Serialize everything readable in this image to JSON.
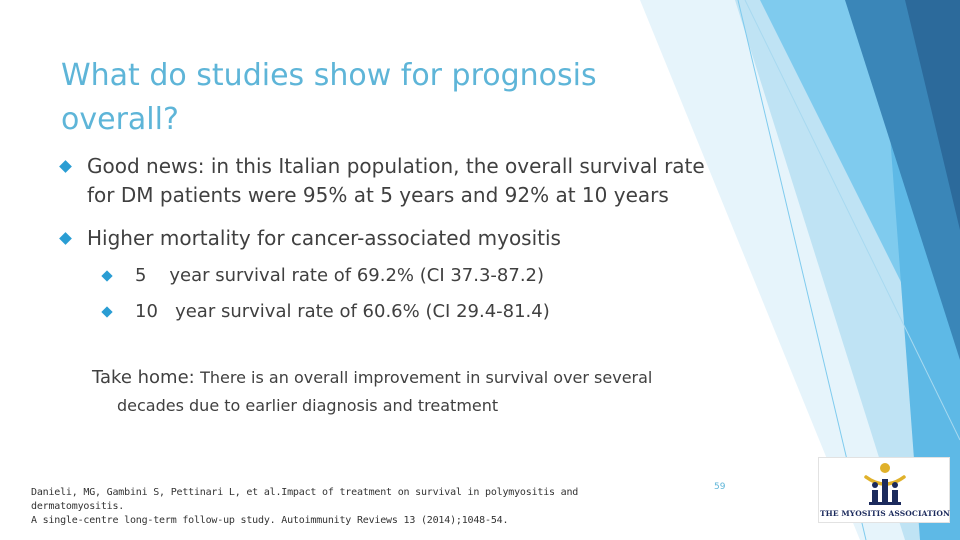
{
  "slide": {
    "title": "What do studies show for prognosis overall?",
    "bullets": [
      {
        "text": "Good news: in this Italian population, the overall survival rate for DM patients were 95% at 5 years and 92% at 10 years",
        "sub": []
      },
      {
        "text": "Higher mortality for cancer-associated myositis",
        "sub": [
          {
            "text": "5    year survival rate of 69.2% (CI 37.3-87.2)"
          },
          {
            "text": "10   year survival rate of 60.6% (CI 29.4-81.4)"
          }
        ]
      }
    ],
    "take_home": {
      "label": "Take home:",
      "line1": "There is an overall improvement in survival over several",
      "line2": "decades due to earlier diagnosis and treatment"
    },
    "reference": {
      "line1": "Danieli, MG, Gambini S, Pettinari L, et al.Impact of treatment on survival in polymyositis and dermatomyositis.",
      "line2": "A single-centre long-term follow-up study.  Autoimmunity Reviews 13 (2014);1048-54."
    },
    "slide_number": "59",
    "logo": {
      "text": "THE MYOSITIS ASSOCIATION",
      "icon": "myositis-association-logo"
    }
  },
  "colors": {
    "title": "#5eb5d8",
    "bullet": "#2a9dd3",
    "body_text": "#404040",
    "deco_light": "#bfe3f4",
    "deco_mid": "#5eb9e6",
    "deco_dark": "#2c6a9b",
    "logo_navy": "#1b2a5c",
    "logo_gold": "#e0b12a"
  }
}
